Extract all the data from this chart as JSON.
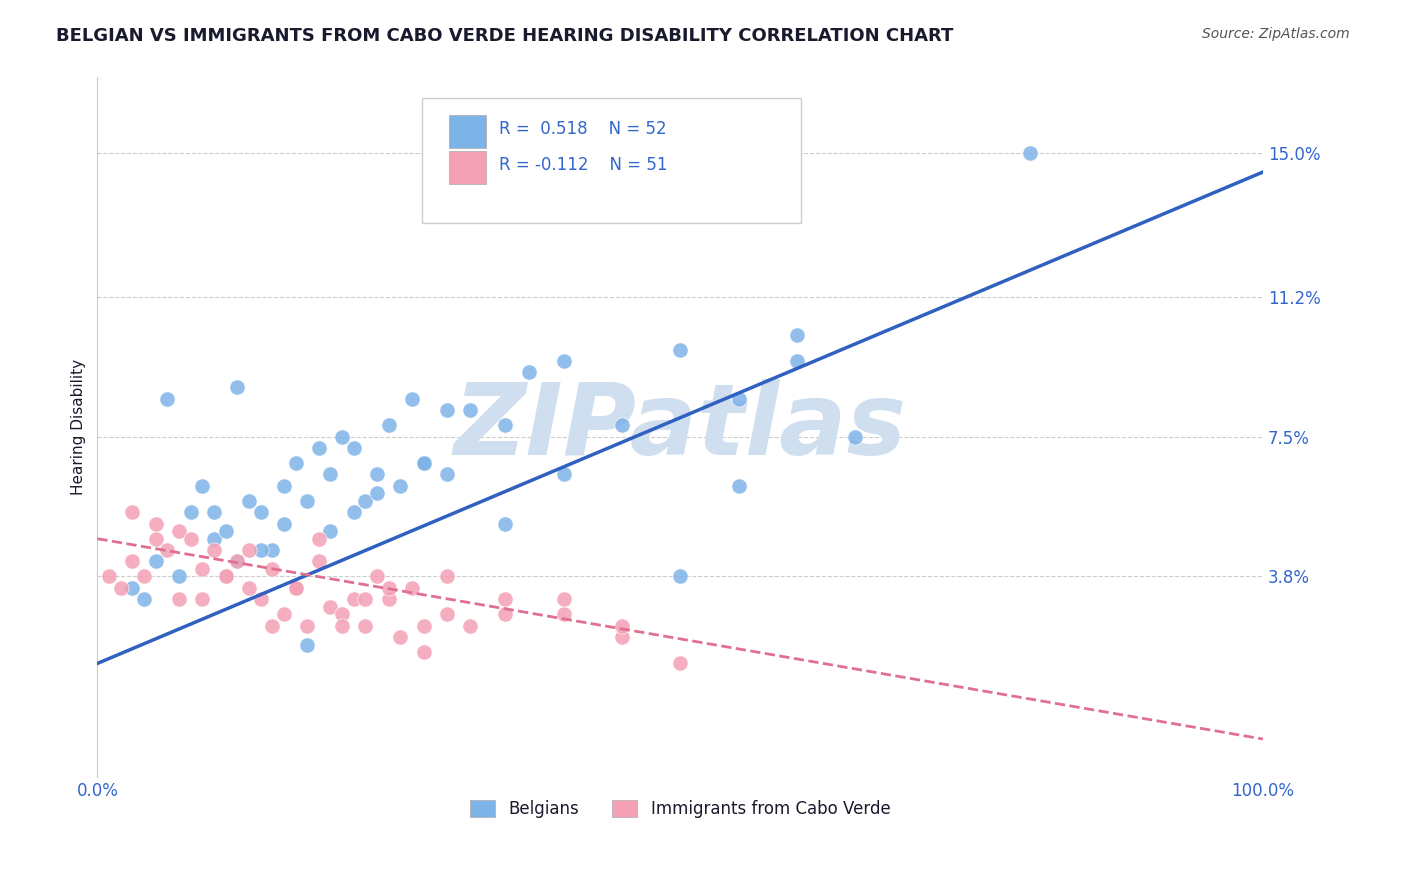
{
  "title": "BELGIAN VS IMMIGRANTS FROM CABO VERDE HEARING DISABILITY CORRELATION CHART",
  "source_text": "Source: ZipAtlas.com",
  "xlabel": "",
  "ylabel": "Hearing Disability",
  "xlim": [
    0,
    100
  ],
  "ylim": [
    -1.5,
    17
  ],
  "xticks": [
    0,
    25,
    50,
    75,
    100
  ],
  "xticklabels": [
    "0.0%",
    "",
    "",
    "",
    "100.0%"
  ],
  "ytick_positions": [
    3.8,
    7.5,
    11.2,
    15.0
  ],
  "ytick_labels": [
    "3.8%",
    "7.5%",
    "11.2%",
    "15.0%"
  ],
  "grid_color": "#cccccc",
  "background_color": "#ffffff",
  "watermark_text": "ZIPatlas",
  "watermark_color": "#d0dff0",
  "legend_r1": "R =  0.518",
  "legend_n1": "N = 52",
  "legend_r2": "R = -0.112",
  "legend_n2": "N = 51",
  "blue_color": "#7eb3e8",
  "pink_color": "#f4a0b5",
  "blue_line_color": "#3060c0",
  "pink_line_color": "#e07090",
  "title_color": "#1a1a2e",
  "axis_label_color": "#1a1a2e",
  "tick_label_color": "#3366cc",
  "series1_label": "Belgians",
  "series2_label": "Immigrants from Cabo Verde",
  "blue_x": [
    3,
    5,
    7,
    8,
    9,
    10,
    11,
    12,
    13,
    14,
    15,
    16,
    17,
    18,
    19,
    20,
    21,
    22,
    23,
    24,
    25,
    26,
    27,
    28,
    30,
    32,
    35,
    37,
    40,
    45,
    50,
    55,
    60,
    65,
    4,
    6,
    10,
    12,
    14,
    16,
    18,
    20,
    22,
    24,
    28,
    30,
    35,
    40,
    50,
    60,
    80,
    55
  ],
  "blue_y": [
    3.5,
    4.2,
    3.8,
    5.5,
    6.2,
    4.8,
    5.0,
    4.2,
    5.8,
    5.5,
    4.5,
    5.2,
    6.8,
    5.8,
    7.2,
    6.5,
    7.5,
    5.5,
    5.8,
    6.5,
    7.8,
    6.2,
    8.5,
    6.8,
    6.5,
    8.2,
    7.8,
    9.2,
    9.5,
    7.8,
    9.8,
    8.5,
    10.2,
    7.5,
    3.2,
    8.5,
    5.5,
    8.8,
    4.5,
    6.2,
    2.0,
    5.0,
    7.2,
    6.0,
    6.8,
    8.2,
    5.2,
    6.5,
    3.8,
    9.5,
    15.0,
    6.2
  ],
  "pink_x": [
    1,
    2,
    3,
    4,
    5,
    6,
    7,
    8,
    9,
    10,
    11,
    12,
    13,
    14,
    15,
    16,
    17,
    18,
    19,
    20,
    21,
    22,
    23,
    24,
    25,
    26,
    27,
    28,
    30,
    32,
    35,
    40,
    45,
    50,
    3,
    5,
    7,
    9,
    11,
    13,
    15,
    17,
    19,
    21,
    23,
    25,
    28,
    30,
    35,
    40,
    45
  ],
  "pink_y": [
    3.8,
    3.5,
    4.2,
    3.8,
    5.2,
    4.5,
    5.0,
    4.8,
    3.2,
    4.5,
    3.8,
    4.2,
    3.5,
    3.2,
    4.0,
    2.8,
    3.5,
    2.5,
    4.2,
    3.0,
    2.8,
    3.2,
    2.5,
    3.8,
    3.2,
    2.2,
    3.5,
    1.8,
    2.8,
    2.5,
    3.2,
    2.8,
    2.2,
    1.5,
    5.5,
    4.8,
    3.2,
    4.0,
    3.8,
    4.5,
    2.5,
    3.5,
    4.8,
    2.5,
    3.2,
    3.5,
    2.5,
    3.8,
    2.8,
    3.2,
    2.5
  ],
  "blue_trend_x": [
    0,
    100
  ],
  "blue_trend_y": [
    1.5,
    14.5
  ],
  "pink_trend_x": [
    0,
    100
  ],
  "pink_trend_y": [
    4.8,
    -0.5
  ]
}
